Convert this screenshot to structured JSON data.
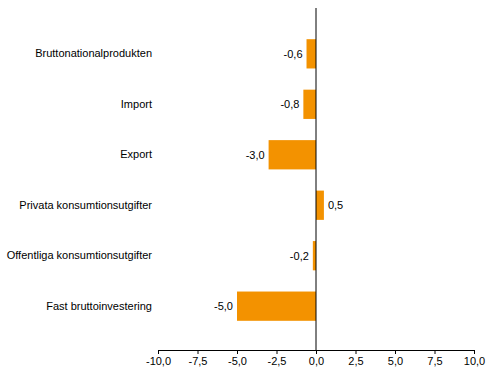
{
  "chart_data": {
    "type": "bar",
    "orientation": "horizontal",
    "categories": [
      "Bruttonationalprodukten",
      "Import",
      "Export",
      "Privata konsumtionsutgifter",
      "Offentliga konsumtionsutgifter",
      "Fast bruttoinvestering"
    ],
    "values": [
      -0.6,
      -0.8,
      -3.0,
      0.5,
      -0.2,
      -5.0
    ],
    "value_labels": [
      "-0,6",
      "-0,8",
      "-3,0",
      "0,5",
      "-0,2",
      "-5,0"
    ],
    "data_labels": true,
    "color": "#f39200",
    "grid": false,
    "xlim": [
      -10,
      10
    ],
    "xticks": [
      {
        "value": -10,
        "label": "-10,0"
      },
      {
        "value": -7.5,
        "label": "-7,5"
      },
      {
        "value": -5,
        "label": "-5,0"
      },
      {
        "value": -2.5,
        "label": "-2,5"
      },
      {
        "value": 0,
        "label": "0,0"
      },
      {
        "value": 2.5,
        "label": "2,5"
      },
      {
        "value": 5,
        "label": "5,0"
      },
      {
        "value": 7.5,
        "label": "7,5"
      },
      {
        "value": 10,
        "label": "10,0"
      }
    ]
  }
}
